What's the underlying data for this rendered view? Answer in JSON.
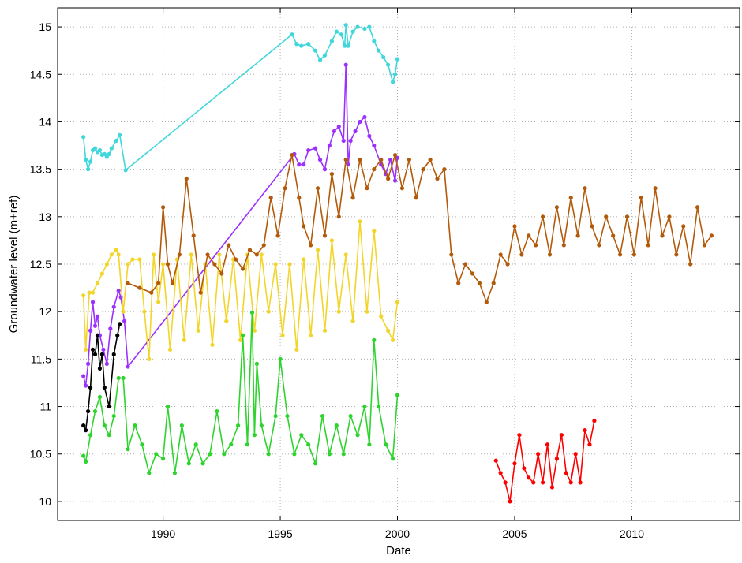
{
  "chart_data": {
    "type": "line",
    "xlabel": "Date",
    "ylabel": "Groundwater level (m+ref)",
    "xlim": [
      1985.5,
      2014.6
    ],
    "ylim": [
      9.8,
      15.2
    ],
    "x_ticks": [
      1990,
      1995,
      2000,
      2005,
      2010
    ],
    "y_ticks": [
      10,
      10.5,
      11,
      11.5,
      12,
      12.5,
      13,
      13.5,
      14,
      14.5,
      15
    ],
    "x_tick_labels": [
      "1990",
      "1995",
      "2000",
      "2005",
      "2010"
    ],
    "y_tick_labels": [
      "10",
      "10.5",
      "11",
      "11.5",
      "12",
      "12.5",
      "13",
      "13.5",
      "14",
      "14.5",
      "15"
    ],
    "grid": true,
    "legend": "none",
    "series": [
      {
        "color": "#3fd7dc",
        "x": [
          1986.6,
          1986.7,
          1986.8,
          1986.9,
          1987.0,
          1987.1,
          1987.2,
          1987.3,
          1987.4,
          1987.5,
          1987.6,
          1987.7,
          1987.8,
          1988.0,
          1988.15,
          1988.4,
          1995.5,
          1995.7,
          1995.9,
          1996.2,
          1996.5,
          1996.7,
          1996.9,
          1997.2,
          1997.4,
          1997.6,
          1997.75,
          1997.8,
          1997.9,
          1998.1,
          1998.3,
          1998.6,
          1998.8,
          1999.0,
          1999.2,
          1999.4,
          1999.6,
          1999.8,
          1999.9,
          2000.0
        ],
        "y": [
          13.84,
          13.6,
          13.5,
          13.58,
          13.7,
          13.72,
          13.68,
          13.7,
          13.65,
          13.66,
          13.63,
          13.66,
          13.72,
          13.8,
          13.86,
          13.49,
          14.92,
          14.82,
          14.8,
          14.82,
          14.75,
          14.65,
          14.7,
          14.85,
          14.95,
          14.92,
          14.8,
          15.02,
          14.8,
          14.95,
          15.0,
          14.98,
          15.0,
          14.85,
          14.75,
          14.68,
          14.6,
          14.42,
          14.5,
          14.66
        ]
      },
      {
        "color": "#9b30ff",
        "x": [
          1986.6,
          1986.7,
          1986.8,
          1986.9,
          1987.0,
          1987.1,
          1987.2,
          1987.3,
          1987.45,
          1987.6,
          1987.75,
          1987.9,
          1988.1,
          1988.2,
          1988.35,
          1988.5,
          1995.6,
          1995.8,
          1996.0,
          1996.2,
          1996.5,
          1996.7,
          1996.9,
          1997.1,
          1997.3,
          1997.5,
          1997.7,
          1997.8,
          1997.9,
          1998.0,
          1998.2,
          1998.4,
          1998.6,
          1998.8,
          1999.0,
          1999.3,
          1999.5,
          1999.7,
          1999.9,
          2000.0
        ],
        "y": [
          11.32,
          11.22,
          11.45,
          11.8,
          12.1,
          11.85,
          11.95,
          11.75,
          11.6,
          11.45,
          11.82,
          12.05,
          12.22,
          12.15,
          11.9,
          11.42,
          13.66,
          13.55,
          13.55,
          13.7,
          13.72,
          13.6,
          13.5,
          13.75,
          13.9,
          13.95,
          13.8,
          14.6,
          13.55,
          13.8,
          13.9,
          14.0,
          14.05,
          13.85,
          13.75,
          13.55,
          13.45,
          13.6,
          13.38,
          13.62
        ]
      },
      {
        "color": "#000000",
        "x": [
          1986.6,
          1986.7,
          1986.8,
          1986.9,
          1987.0,
          1987.1,
          1987.2,
          1987.3,
          1987.4,
          1987.5,
          1987.7,
          1987.9,
          1988.05,
          1988.15
        ],
        "y": [
          10.8,
          10.75,
          10.95,
          11.2,
          11.6,
          11.55,
          11.75,
          11.4,
          11.55,
          11.2,
          11.0,
          11.55,
          11.75,
          11.87
        ]
      },
      {
        "color": "#f2d52a",
        "x": [
          1986.6,
          1986.7,
          1986.85,
          1987.0,
          1987.2,
          1987.4,
          1987.6,
          1987.8,
          1988.0,
          1988.1,
          1988.3,
          1988.5,
          1988.7,
          1989.0,
          1989.2,
          1989.4,
          1989.6,
          1989.8,
          1990.0,
          1990.3,
          1990.6,
          1990.9,
          1991.2,
          1991.5,
          1991.8,
          1992.1,
          1992.4,
          1992.7,
          1993.0,
          1993.3,
          1993.6,
          1993.9,
          1994.2,
          1994.5,
          1994.8,
          1995.1,
          1995.4,
          1995.7,
          1996.0,
          1996.3,
          1996.6,
          1996.9,
          1997.2,
          1997.5,
          1997.8,
          1998.1,
          1998.4,
          1998.7,
          1999.0,
          1999.3,
          1999.6,
          1999.8,
          2000.0
        ],
        "y": [
          12.17,
          11.6,
          12.2,
          12.2,
          12.3,
          12.4,
          12.5,
          12.6,
          12.65,
          12.6,
          12.0,
          12.5,
          12.55,
          12.55,
          12.0,
          11.5,
          12.6,
          12.1,
          12.5,
          11.6,
          12.55,
          11.7,
          12.6,
          11.8,
          12.5,
          11.65,
          12.6,
          11.9,
          12.55,
          11.7,
          12.6,
          11.8,
          12.6,
          12.0,
          12.5,
          11.75,
          12.5,
          11.6,
          12.55,
          11.75,
          12.65,
          11.8,
          12.75,
          12.0,
          12.6,
          11.9,
          12.95,
          12.0,
          12.85,
          11.95,
          11.8,
          11.7,
          12.1
        ]
      },
      {
        "color": "#2ed42e",
        "x": [
          1986.6,
          1986.7,
          1986.9,
          1987.1,
          1987.3,
          1987.5,
          1987.7,
          1987.9,
          1988.1,
          1988.3,
          1988.5,
          1988.8,
          1989.1,
          1989.4,
          1989.7,
          1990.0,
          1990.2,
          1990.5,
          1990.8,
          1991.1,
          1991.4,
          1991.7,
          1992.0,
          1992.3,
          1992.6,
          1992.9,
          1993.2,
          1993.4,
          1993.6,
          1993.8,
          1993.9,
          1994.0,
          1994.2,
          1994.5,
          1994.8,
          1995.0,
          1995.3,
          1995.6,
          1995.9,
          1996.2,
          1996.5,
          1996.8,
          1997.1,
          1997.4,
          1997.7,
          1998.0,
          1998.3,
          1998.6,
          1998.8,
          1999.0,
          1999.2,
          1999.5,
          1999.8,
          2000.0
        ],
        "y": [
          10.48,
          10.42,
          10.7,
          10.95,
          11.1,
          10.8,
          10.7,
          10.9,
          11.3,
          11.3,
          10.55,
          10.8,
          10.6,
          10.3,
          10.5,
          10.45,
          11.0,
          10.3,
          10.8,
          10.4,
          10.6,
          10.4,
          10.5,
          10.95,
          10.5,
          10.6,
          10.8,
          11.75,
          10.6,
          11.99,
          10.7,
          11.45,
          10.8,
          10.5,
          10.9,
          11.5,
          10.9,
          10.5,
          10.7,
          10.6,
          10.4,
          10.9,
          10.5,
          10.8,
          10.5,
          10.9,
          10.7,
          11.0,
          10.6,
          11.7,
          11.0,
          10.6,
          10.45,
          11.12
        ]
      },
      {
        "color": "#b35a0a",
        "x": [
          1988.5,
          1989.0,
          1989.5,
          1989.8,
          1990.0,
          1990.2,
          1990.4,
          1990.7,
          1991.0,
          1991.3,
          1991.6,
          1991.9,
          1992.2,
          1992.5,
          1992.8,
          1993.1,
          1993.4,
          1993.7,
          1994.0,
          1994.3,
          1994.6,
          1994.9,
          1995.2,
          1995.5,
          1995.8,
          1996.0,
          1996.3,
          1996.6,
          1996.9,
          1997.2,
          1997.5,
          1997.8,
          1998.1,
          1998.4,
          1998.7,
          1999.0,
          1999.3,
          1999.6,
          1999.9,
          2000.2,
          2000.5,
          2000.8,
          2001.1,
          2001.4,
          2001.7,
          2002.0,
          2002.3,
          2002.6,
          2002.9,
          2003.2,
          2003.5,
          2003.8,
          2004.1,
          2004.4,
          2004.7,
          2005.0,
          2005.3,
          2005.6,
          2005.9,
          2006.2,
          2006.5,
          2006.8,
          2007.1,
          2007.4,
          2007.7,
          2008.0,
          2008.3,
          2008.6,
          2008.9,
          2009.2,
          2009.5,
          2009.8,
          2010.1,
          2010.4,
          2010.7,
          2011.0,
          2011.3,
          2011.6,
          2011.9,
          2012.2,
          2012.5,
          2012.8,
          2013.1,
          2013.4
        ],
        "y": [
          12.3,
          12.25,
          12.2,
          12.3,
          13.1,
          12.5,
          12.3,
          12.6,
          13.4,
          12.8,
          12.2,
          12.6,
          12.5,
          12.4,
          12.7,
          12.55,
          12.45,
          12.65,
          12.6,
          12.7,
          13.2,
          12.8,
          13.3,
          13.65,
          13.2,
          12.9,
          12.7,
          13.3,
          12.8,
          13.45,
          13.0,
          13.6,
          13.2,
          13.6,
          13.3,
          13.5,
          13.6,
          13.4,
          13.65,
          13.3,
          13.6,
          13.2,
          13.5,
          13.6,
          13.4,
          13.5,
          12.6,
          12.3,
          12.5,
          12.4,
          12.3,
          12.1,
          12.3,
          12.6,
          12.5,
          12.9,
          12.6,
          12.8,
          12.7,
          13.0,
          12.6,
          13.1,
          12.7,
          13.2,
          12.8,
          13.3,
          12.9,
          12.7,
          13.0,
          12.8,
          12.6,
          13.0,
          12.6,
          13.2,
          12.7,
          13.3,
          12.8,
          13.0,
          12.6,
          12.9,
          12.5,
          13.1,
          12.7,
          12.8
        ]
      },
      {
        "color": "#ff0000",
        "x": [
          2004.2,
          2004.4,
          2004.6,
          2004.8,
          2005.0,
          2005.2,
          2005.4,
          2005.6,
          2005.8,
          2006.0,
          2006.2,
          2006.4,
          2006.6,
          2006.8,
          2007.0,
          2007.2,
          2007.4,
          2007.6,
          2007.8,
          2008.0,
          2008.2,
          2008.4
        ],
        "y": [
          10.43,
          10.3,
          10.2,
          10.0,
          10.4,
          10.7,
          10.35,
          10.25,
          10.2,
          10.5,
          10.2,
          10.6,
          10.15,
          10.45,
          10.7,
          10.3,
          10.2,
          10.5,
          10.2,
          10.75,
          10.6,
          10.85
        ]
      }
    ]
  }
}
